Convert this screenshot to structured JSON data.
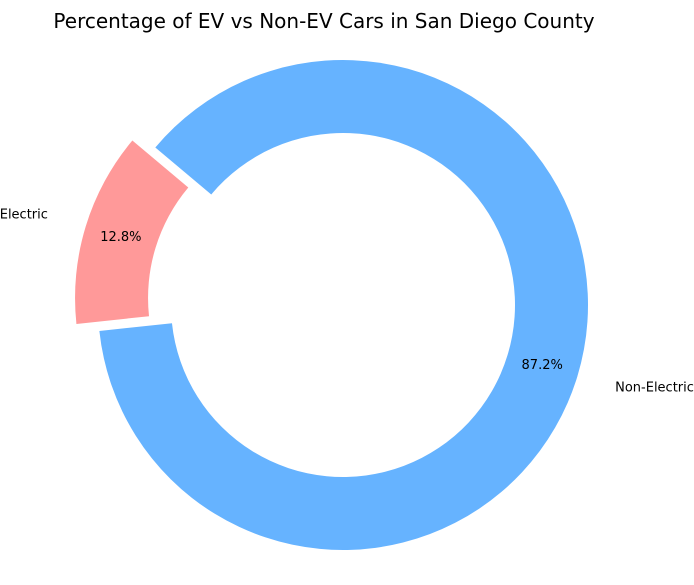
{
  "chart_data": {
    "type": "pie",
    "title": "Percentage of EV vs Non-EV Cars in San Diego County",
    "categories": [
      "Electric",
      "Non-Electric"
    ],
    "values": [
      12.8,
      87.2
    ],
    "value_labels": [
      "12.8%",
      "87.2%"
    ],
    "colors": [
      "#ff9999",
      "#66b3ff"
    ],
    "style": "donut",
    "exploded": [
      "Electric"
    ],
    "start_angle_deg": 140,
    "direction": "counterclockwise"
  }
}
